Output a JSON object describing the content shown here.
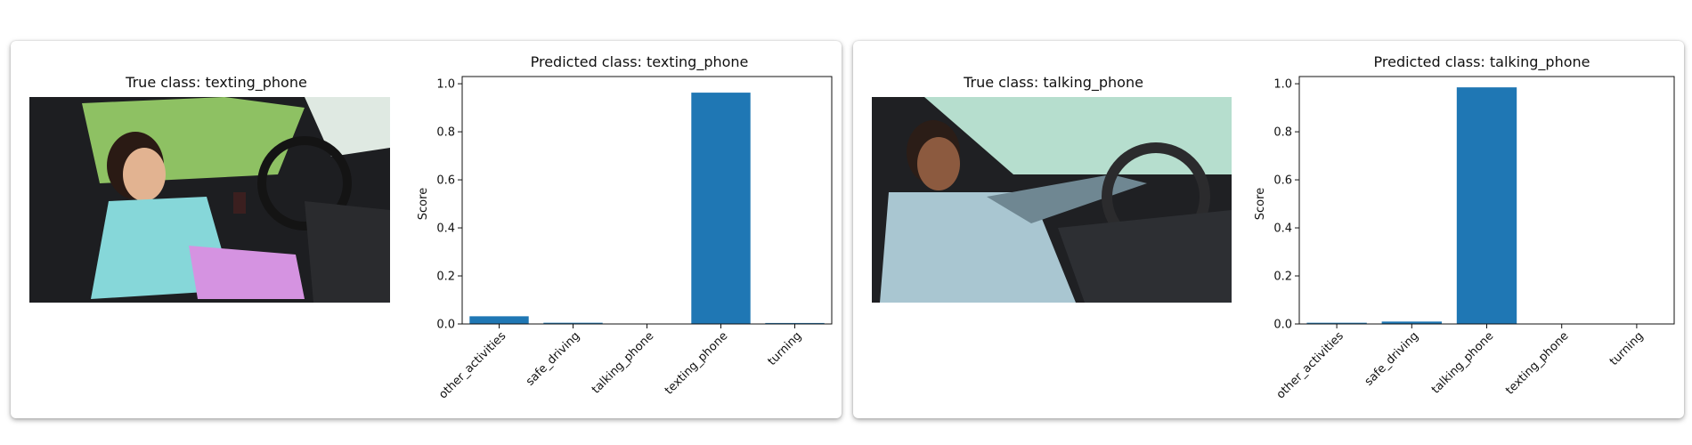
{
  "panels": [
    {
      "image_title": "True class: texting_phone",
      "photo": {
        "scene": "driver-texting",
        "colors": {
          "window": "#9bd36a",
          "interior": "#2a2b2e",
          "shirt": "#86d7d9",
          "accent": "#d593e1"
        }
      }
    },
    {
      "image_title": "True class: talking_phone",
      "photo": {
        "scene": "driver-talking",
        "colors": {
          "window": "#bfe9d8",
          "interior": "#2d2f33",
          "shirt": "#a9c6d1",
          "accent": "#6f8792"
        }
      }
    }
  ],
  "chart_data": [
    {
      "type": "bar",
      "title": "Predicted class: texting_phone",
      "xlabel": "",
      "ylabel": "Score",
      "categories": [
        "other_activities",
        "safe_driving",
        "talking_phone",
        "texting_phone",
        "turning"
      ],
      "values": [
        0.032,
        0.005,
        0.0,
        0.963,
        0.004
      ],
      "ylim": [
        0,
        1.03
      ],
      "yticks": [
        "0.0",
        "0.2",
        "0.4",
        "0.6",
        "0.8",
        "1.0"
      ],
      "grid": false,
      "bar_color": "#1f77b4"
    },
    {
      "type": "bar",
      "title": "Predicted class: talking_phone",
      "xlabel": "",
      "ylabel": "Score",
      "categories": [
        "other_activities",
        "safe_driving",
        "talking_phone",
        "texting_phone",
        "turning"
      ],
      "values": [
        0.005,
        0.01,
        0.985,
        0.0,
        0.0
      ],
      "ylim": [
        0,
        1.03
      ],
      "yticks": [
        "0.0",
        "0.2",
        "0.4",
        "0.6",
        "0.8",
        "1.0"
      ],
      "grid": false,
      "bar_color": "#1f77b4"
    }
  ]
}
